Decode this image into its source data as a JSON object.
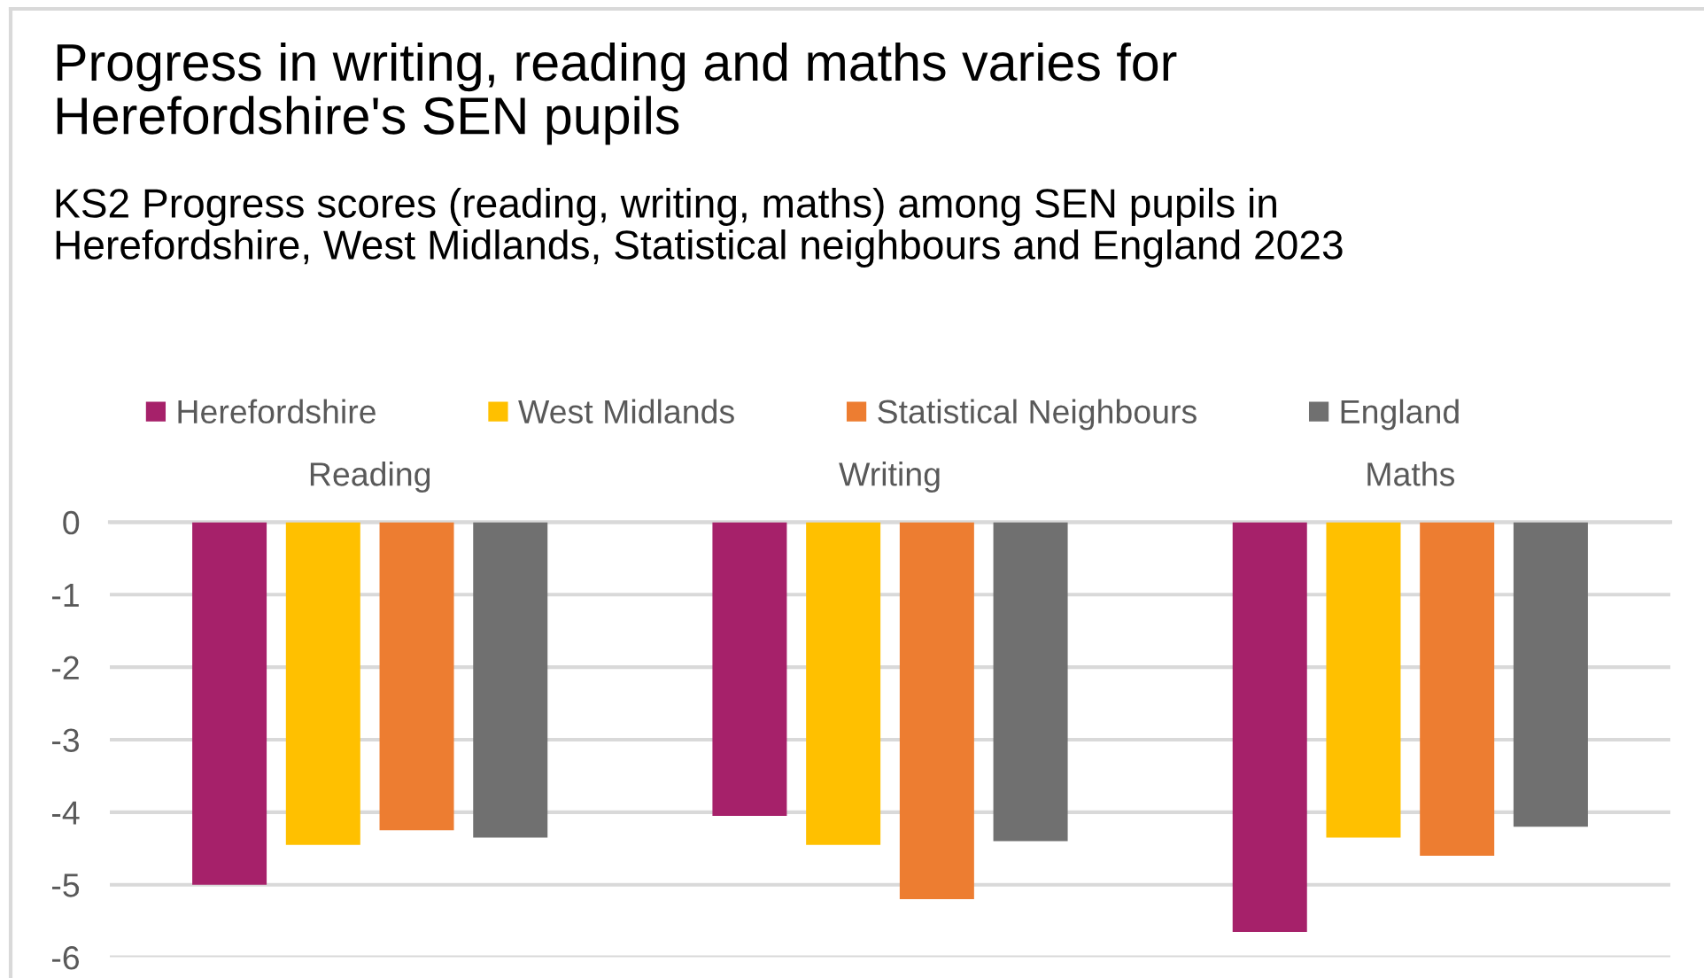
{
  "chart_data": {
    "type": "bar",
    "title": "Progress in writing, reading and maths varies for\nHerefordshire's SEN pupils",
    "subtitle": "KS2 Progress scores (reading, writing, maths) among SEN pupils in\nHerefordshire, West Midlands, Statistical neighbours and England 2023",
    "categories": [
      "Reading",
      "Writing",
      "Maths"
    ],
    "series": [
      {
        "name": "Herefordshire",
        "color": "#a6216a",
        "values": [
          -5.0,
          -4.05,
          -5.65
        ]
      },
      {
        "name": "West Midlands",
        "color": "#ffc000",
        "values": [
          -4.45,
          -4.45,
          -4.35
        ]
      },
      {
        "name": "Statistical Neighbours",
        "color": "#ed7d31",
        "values": [
          -4.25,
          -5.2,
          -4.6
        ]
      },
      {
        "name": "England",
        "color": "#707070",
        "values": [
          -4.35,
          -4.4,
          -4.2
        ]
      }
    ],
    "ylim": [
      -6,
      0
    ],
    "yticks": [
      -6,
      -5,
      -4,
      -3,
      -2,
      -1,
      0
    ],
    "grid": "y",
    "legend": "top"
  }
}
